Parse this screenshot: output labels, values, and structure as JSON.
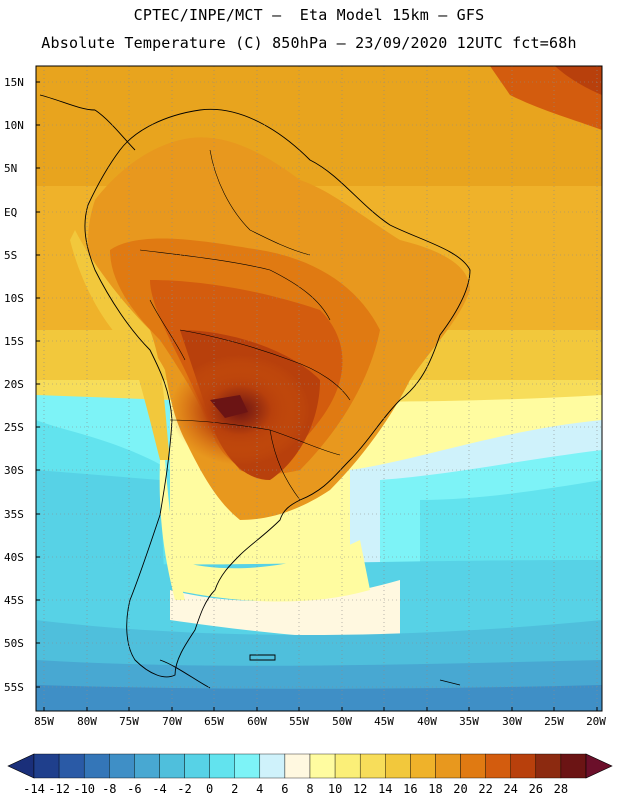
{
  "title": {
    "line1": "CPTEC/INPE/MCT –  Eta Model 15km – GFS",
    "line2": "Absolute Temperature (C) 850hPa – 23/09/2020 12UTC fct=68h"
  },
  "map": {
    "lat_labels": [
      "15N",
      "10N",
      "5N",
      "EQ",
      "5S",
      "10S",
      "15S",
      "20S",
      "25S",
      "30S",
      "35S",
      "40S",
      "45S",
      "50S",
      "55S"
    ],
    "lon_labels": [
      "85W",
      "80W",
      "75W",
      "70W",
      "65W",
      "60W",
      "55W",
      "50W",
      "45W",
      "40W",
      "35W",
      "30W",
      "25W",
      "20W"
    ]
  },
  "colorbar": {
    "labels": [
      "-14",
      "-12",
      "-10",
      "-8",
      "-6",
      "-4",
      "-2",
      "0",
      "2",
      "4",
      "6",
      "8",
      "10",
      "12",
      "14",
      "16",
      "18",
      "20",
      "22",
      "24",
      "26",
      "28"
    ],
    "colors": [
      "#1f3f8c",
      "#2a5aa6",
      "#3476b8",
      "#3f8fc6",
      "#48a8d2",
      "#4fbfdc",
      "#57d2e6",
      "#62e3ee",
      "#7df3f7",
      "#cff2fb",
      "#fff8e0",
      "#fffca0",
      "#fbef78",
      "#f7dd5a",
      "#f2c83c",
      "#efb22a",
      "#e8981e",
      "#e07a12",
      "#d35c0e",
      "#b8400c",
      "#8c2a10",
      "#6b1414"
    ],
    "under_color": "#1a2f7a",
    "over_color": "#6b0f2a"
  }
}
